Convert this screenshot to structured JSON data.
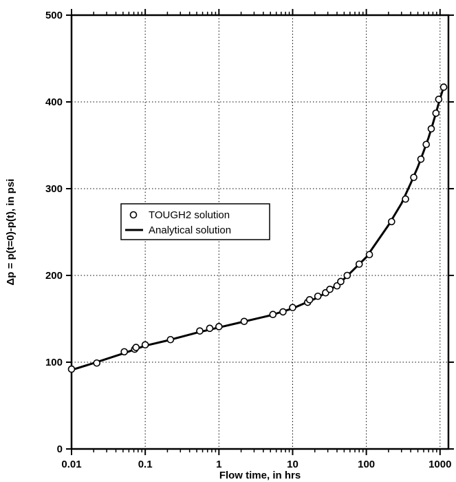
{
  "chart_data": {
    "type": "line",
    "xlabel": "Flow time, in hrs",
    "ylabel": "Δp = p(t=0)-p(t), in psi",
    "x_scale": "log",
    "xlim": [
      0.01,
      1300
    ],
    "ylim": [
      0,
      500
    ],
    "x_ticks": [
      {
        "value": 0.01,
        "label": "0.01"
      },
      {
        "value": 0.1,
        "label": "0.1"
      },
      {
        "value": 1,
        "label": "1"
      },
      {
        "value": 10,
        "label": "10"
      },
      {
        "value": 100,
        "label": "100"
      },
      {
        "value": 1000,
        "label": "1000"
      }
    ],
    "y_ticks": [
      {
        "value": 0,
        "label": "0"
      },
      {
        "value": 100,
        "label": "100"
      },
      {
        "value": 200,
        "label": "200"
      },
      {
        "value": 300,
        "label": "300"
      },
      {
        "value": 400,
        "label": "400"
      },
      {
        "value": 500,
        "label": "500"
      }
    ],
    "grid": true,
    "legend_position": "center-left",
    "series": [
      {
        "name": "TOUGH2 solution",
        "marker": "open-circle",
        "color": "#000000",
        "points": [
          {
            "x": 0.01,
            "y": 92
          },
          {
            "x": 0.022,
            "y": 99
          },
          {
            "x": 0.052,
            "y": 112
          },
          {
            "x": 0.072,
            "y": 115
          },
          {
            "x": 0.075,
            "y": 117
          },
          {
            "x": 0.1,
            "y": 120
          },
          {
            "x": 0.22,
            "y": 126
          },
          {
            "x": 0.55,
            "y": 136
          },
          {
            "x": 0.75,
            "y": 139
          },
          {
            "x": 1.0,
            "y": 141
          },
          {
            "x": 2.2,
            "y": 147
          },
          {
            "x": 5.4,
            "y": 155
          },
          {
            "x": 7.4,
            "y": 158
          },
          {
            "x": 10,
            "y": 163
          },
          {
            "x": 16,
            "y": 169
          },
          {
            "x": 17,
            "y": 172
          },
          {
            "x": 22,
            "y": 176
          },
          {
            "x": 28,
            "y": 180
          },
          {
            "x": 32,
            "y": 184
          },
          {
            "x": 40,
            "y": 188
          },
          {
            "x": 45,
            "y": 193
          },
          {
            "x": 55,
            "y": 200
          },
          {
            "x": 80,
            "y": 213
          },
          {
            "x": 110,
            "y": 224
          },
          {
            "x": 220,
            "y": 262
          },
          {
            "x": 340,
            "y": 288
          },
          {
            "x": 440,
            "y": 313
          },
          {
            "x": 550,
            "y": 334
          },
          {
            "x": 650,
            "y": 351
          },
          {
            "x": 760,
            "y": 369
          },
          {
            "x": 880,
            "y": 387
          },
          {
            "x": 960,
            "y": 403
          },
          {
            "x": 1120,
            "y": 417
          }
        ]
      },
      {
        "name": "Analytical solution",
        "marker": "line",
        "color": "#000000",
        "points": [
          {
            "x": 0.01,
            "y": 91
          },
          {
            "x": 0.02,
            "y": 99
          },
          {
            "x": 0.05,
            "y": 110
          },
          {
            "x": 0.1,
            "y": 119
          },
          {
            "x": 0.2,
            "y": 125
          },
          {
            "x": 0.5,
            "y": 134
          },
          {
            "x": 1.0,
            "y": 140
          },
          {
            "x": 2.0,
            "y": 146
          },
          {
            "x": 5.0,
            "y": 154
          },
          {
            "x": 10,
            "y": 162
          },
          {
            "x": 20,
            "y": 173
          },
          {
            "x": 30,
            "y": 181
          },
          {
            "x": 50,
            "y": 196
          },
          {
            "x": 100,
            "y": 221
          },
          {
            "x": 200,
            "y": 258
          },
          {
            "x": 300,
            "y": 283
          },
          {
            "x": 400,
            "y": 306
          },
          {
            "x": 500,
            "y": 325
          },
          {
            "x": 600,
            "y": 343
          },
          {
            "x": 700,
            "y": 359
          },
          {
            "x": 800,
            "y": 375
          },
          {
            "x": 900,
            "y": 390
          },
          {
            "x": 1000,
            "y": 404
          },
          {
            "x": 1150,
            "y": 420
          }
        ]
      }
    ]
  }
}
